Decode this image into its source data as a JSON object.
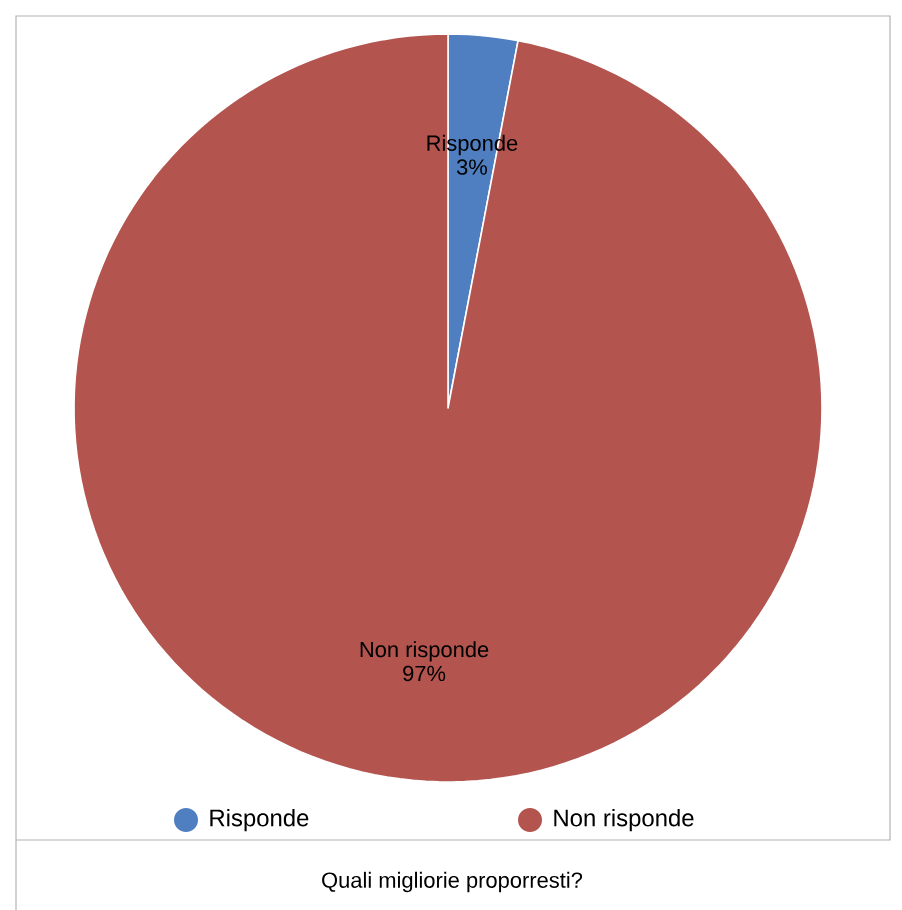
{
  "chart_data": {
    "type": "pie",
    "title": "Quali migliorie proporresti?",
    "categories": [
      "Risponde",
      "Non risponde"
    ],
    "values": [
      3,
      97
    ],
    "colors": [
      "#4f7fc0",
      "#b3544f"
    ],
    "value_labels": [
      "3%",
      "97%"
    ],
    "legend": "bottom"
  }
}
